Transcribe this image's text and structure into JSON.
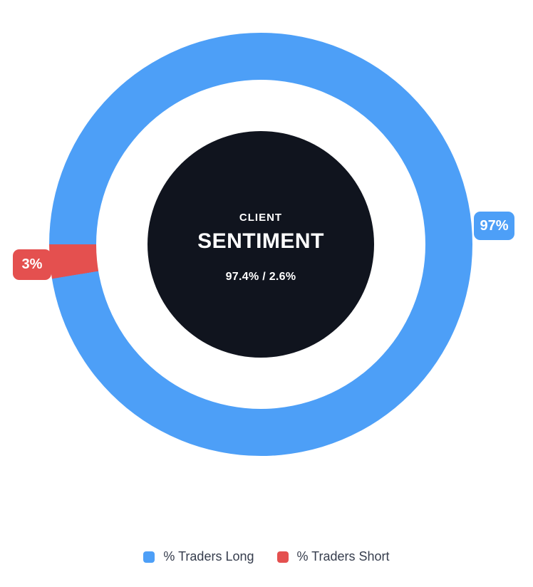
{
  "colors": {
    "long": "#4d9ff7",
    "short": "#e4504f",
    "center_bg": "#10141e",
    "legend_text": "#363d4d",
    "page_bg": "#ffffff"
  },
  "center": {
    "kicker": "CLIENT",
    "title": "SENTIMENT",
    "ratio": "97.4% / 2.6%"
  },
  "badges": {
    "long": "97%",
    "short": "3%"
  },
  "legend": [
    {
      "label": "% Traders Long",
      "color": "#4d9ff7"
    },
    {
      "label": "% Traders Short",
      "color": "#e4504f"
    }
  ],
  "chart_data": {
    "type": "pie",
    "subtype": "donut",
    "title": "CLIENT SENTIMENT",
    "labels": [
      "% Traders Long",
      "% Traders Short"
    ],
    "values": [
      97.4,
      2.6
    ],
    "slice_labels": [
      "97%",
      "3%"
    ],
    "colors": [
      "#4d9ff7",
      "#e4504f"
    ],
    "center_text": [
      "CLIENT",
      "SENTIMENT",
      "97.4% / 2.6%"
    ],
    "legend_position": "bottom",
    "start_angle_deg": 270,
    "direction": "clockwise"
  }
}
